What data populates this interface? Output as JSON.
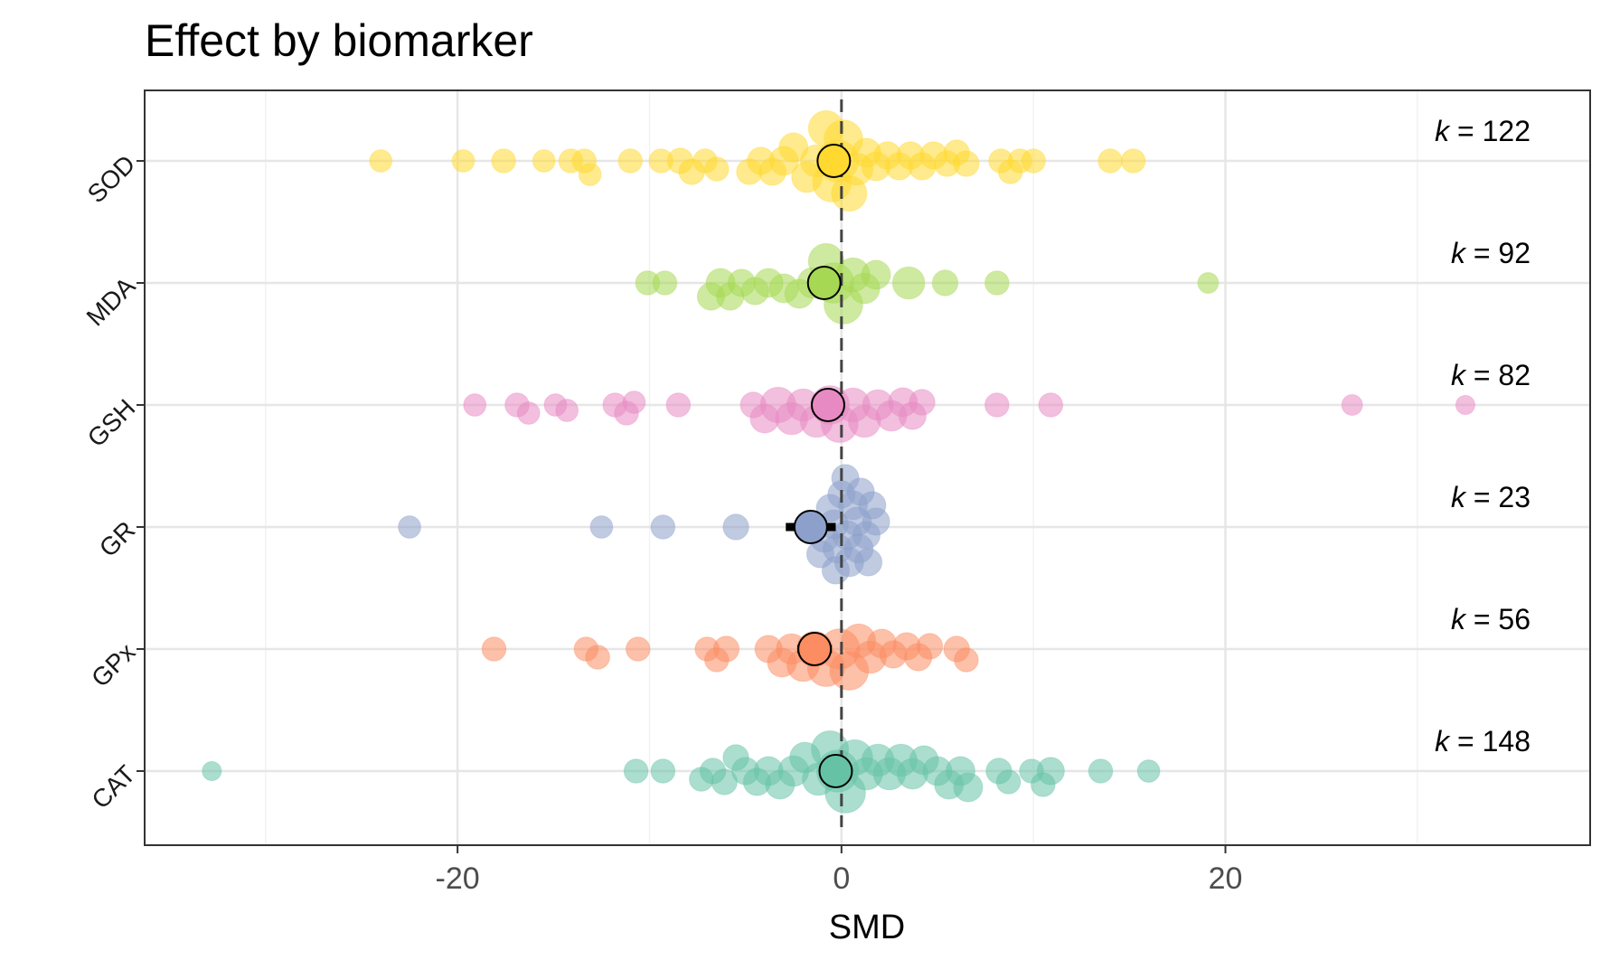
{
  "chart_data": {
    "type": "scatter",
    "title": "Effect by biomarker",
    "xlabel": "SMD",
    "ylabel": "",
    "xlim": [
      -36.3,
      39
    ],
    "x_ticks": [
      -20,
      0,
      20
    ],
    "x_tick_labels": [
      "-20",
      "0",
      "20"
    ],
    "reference_line_x": 0,
    "grid": true,
    "categories": [
      "SOD",
      "MDA",
      "GSH",
      "GR",
      "GPx",
      "CAT"
    ],
    "series": [
      {
        "name": "SOD",
        "color": "#FFD92F",
        "k_label": "k = 122",
        "summary": {
          "estimate": -0.4,
          "ci": [
            -1.0,
            0.2
          ]
        },
        "points": [
          {
            "x": -24.0,
            "y": 0,
            "w": 0.3
          },
          {
            "x": -19.7,
            "y": 0,
            "w": 0.3
          },
          {
            "x": -17.6,
            "y": 0,
            "w": 0.35
          },
          {
            "x": -15.5,
            "y": 0,
            "w": 0.3
          },
          {
            "x": -14.1,
            "y": 0,
            "w": 0.35
          },
          {
            "x": -13.4,
            "y": 0,
            "w": 0.35
          },
          {
            "x": -13.1,
            "y": 0,
            "w": 0.3
          },
          {
            "x": -11.0,
            "y": 0,
            "w": 0.35
          },
          {
            "x": -9.4,
            "y": 0,
            "w": 0.35
          },
          {
            "x": -8.4,
            "y": 0,
            "w": 0.4
          },
          {
            "x": -7.8,
            "y": 0,
            "w": 0.4
          },
          {
            "x": -7.1,
            "y": 0,
            "w": 0.35
          },
          {
            "x": -6.5,
            "y": 0,
            "w": 0.35
          },
          {
            "x": -4.8,
            "y": 0,
            "w": 0.4
          },
          {
            "x": -4.2,
            "y": 0,
            "w": 0.45
          },
          {
            "x": -3.6,
            "y": 0,
            "w": 0.45
          },
          {
            "x": -3.0,
            "y": 0,
            "w": 0.5
          },
          {
            "x": -2.5,
            "y": 0,
            "w": 0.5
          },
          {
            "x": -1.8,
            "y": 0,
            "w": 0.55
          },
          {
            "x": -1.3,
            "y": 0,
            "w": 0.6
          },
          {
            "x": -0.8,
            "y": 0,
            "w": 0.7
          },
          {
            "x": -0.5,
            "y": 0,
            "w": 0.8
          },
          {
            "x": -0.2,
            "y": 0,
            "w": 0.9
          },
          {
            "x": 0.1,
            "y": 0,
            "w": 0.8
          },
          {
            "x": 0.4,
            "y": 0,
            "w": 0.7
          },
          {
            "x": 0.8,
            "y": 0,
            "w": 0.6
          },
          {
            "x": 1.3,
            "y": 0,
            "w": 0.5
          },
          {
            "x": 1.8,
            "y": 0,
            "w": 0.5
          },
          {
            "x": 2.4,
            "y": 0,
            "w": 0.45
          },
          {
            "x": 3.0,
            "y": 0,
            "w": 0.45
          },
          {
            "x": 3.6,
            "y": 0,
            "w": 0.45
          },
          {
            "x": 4.2,
            "y": 0,
            "w": 0.45
          },
          {
            "x": 4.8,
            "y": 0,
            "w": 0.45
          },
          {
            "x": 5.5,
            "y": 0,
            "w": 0.4
          },
          {
            "x": 6.0,
            "y": 0,
            "w": 0.4
          },
          {
            "x": 6.5,
            "y": 0,
            "w": 0.4
          },
          {
            "x": 8.3,
            "y": 0,
            "w": 0.35
          },
          {
            "x": 8.8,
            "y": 0,
            "w": 0.35
          },
          {
            "x": 9.3,
            "y": 0,
            "w": 0.35
          },
          {
            "x": 10.0,
            "y": 0,
            "w": 0.35
          },
          {
            "x": 14.0,
            "y": 0,
            "w": 0.35
          },
          {
            "x": 15.2,
            "y": 0,
            "w": 0.35
          }
        ]
      },
      {
        "name": "MDA",
        "color": "#A6D854",
        "k_label": "k = 92",
        "summary": {
          "estimate": -0.9,
          "ci": [
            -1.5,
            -0.3
          ]
        },
        "points": [
          {
            "x": -10.1,
            "y": 0,
            "w": 0.35
          },
          {
            "x": -9.2,
            "y": 0,
            "w": 0.35
          },
          {
            "x": -6.8,
            "y": 0,
            "w": 0.45
          },
          {
            "x": -6.3,
            "y": 0,
            "w": 0.5
          },
          {
            "x": -5.8,
            "y": 0,
            "w": 0.45
          },
          {
            "x": -5.2,
            "y": 0,
            "w": 0.45
          },
          {
            "x": -4.5,
            "y": 0,
            "w": 0.45
          },
          {
            "x": -3.8,
            "y": 0,
            "w": 0.5
          },
          {
            "x": -3.0,
            "y": 0,
            "w": 0.5
          },
          {
            "x": -2.2,
            "y": 0,
            "w": 0.5
          },
          {
            "x": -1.5,
            "y": 0,
            "w": 0.55
          },
          {
            "x": -0.8,
            "y": 0,
            "w": 0.7
          },
          {
            "x": -0.4,
            "y": 0,
            "w": 0.85
          },
          {
            "x": 0.1,
            "y": 0,
            "w": 0.8
          },
          {
            "x": 0.6,
            "y": 0,
            "w": 0.65
          },
          {
            "x": 1.2,
            "y": 0,
            "w": 0.55
          },
          {
            "x": 1.8,
            "y": 0,
            "w": 0.5
          },
          {
            "x": 3.5,
            "y": 0,
            "w": 0.6
          },
          {
            "x": 5.4,
            "y": 0,
            "w": 0.4
          },
          {
            "x": 8.1,
            "y": 0,
            "w": 0.35
          },
          {
            "x": 19.1,
            "y": 0,
            "w": 0.25
          }
        ]
      },
      {
        "name": "GSH",
        "color": "#E78AC3",
        "k_label": "k = 82",
        "summary": {
          "estimate": -0.7,
          "ci": [
            -1.3,
            -0.1
          ]
        },
        "points": [
          {
            "x": -19.1,
            "y": 0,
            "w": 0.3
          },
          {
            "x": -16.9,
            "y": 0,
            "w": 0.35
          },
          {
            "x": -16.3,
            "y": 0,
            "w": 0.3
          },
          {
            "x": -14.9,
            "y": 0,
            "w": 0.3
          },
          {
            "x": -14.3,
            "y": 0,
            "w": 0.3
          },
          {
            "x": -11.8,
            "y": 0,
            "w": 0.35
          },
          {
            "x": -11.2,
            "y": 0,
            "w": 0.35
          },
          {
            "x": -10.8,
            "y": 0,
            "w": 0.3
          },
          {
            "x": -8.5,
            "y": 0,
            "w": 0.35
          },
          {
            "x": -4.6,
            "y": 0,
            "w": 0.4
          },
          {
            "x": -4.0,
            "y": 0,
            "w": 0.5
          },
          {
            "x": -3.3,
            "y": 0,
            "w": 0.7
          },
          {
            "x": -2.6,
            "y": 0,
            "w": 0.6
          },
          {
            "x": -2.0,
            "y": 0,
            "w": 0.6
          },
          {
            "x": -1.3,
            "y": 0,
            "w": 0.6
          },
          {
            "x": -0.6,
            "y": 0,
            "w": 0.8
          },
          {
            "x": -0.1,
            "y": 0,
            "w": 0.75
          },
          {
            "x": 0.6,
            "y": 0,
            "w": 0.65
          },
          {
            "x": 1.2,
            "y": 0,
            "w": 0.6
          },
          {
            "x": 1.9,
            "y": 0,
            "w": 0.55
          },
          {
            "x": 2.6,
            "y": 0,
            "w": 0.55
          },
          {
            "x": 3.2,
            "y": 0,
            "w": 0.5
          },
          {
            "x": 3.7,
            "y": 0,
            "w": 0.45
          },
          {
            "x": 4.2,
            "y": 0,
            "w": 0.4
          },
          {
            "x": 8.1,
            "y": 0,
            "w": 0.35
          },
          {
            "x": 10.9,
            "y": 0,
            "w": 0.35
          },
          {
            "x": 26.6,
            "y": 0,
            "w": 0.25
          },
          {
            "x": 32.5,
            "y": 0,
            "w": 0.2
          }
        ]
      },
      {
        "name": "GR",
        "color": "#8DA0CB",
        "k_label": "k = 23",
        "summary": {
          "estimate": -1.6,
          "ci": [
            -2.9,
            -0.3
          ]
        },
        "points": [
          {
            "x": -22.5,
            "y": 0,
            "w": 0.3
          },
          {
            "x": -12.5,
            "y": 0,
            "w": 0.3
          },
          {
            "x": -9.3,
            "y": 0,
            "w": 0.35
          },
          {
            "x": -5.5,
            "y": 0,
            "w": 0.4
          },
          {
            "x": -1.6,
            "y": 0,
            "w": 0.55
          },
          {
            "x": -0.9,
            "y": 0,
            "w": 0.5
          },
          {
            "x": -0.4,
            "y": 0,
            "w": 0.5
          },
          {
            "x": 0.3,
            "y": 0,
            "w": 0.5
          },
          {
            "x": 0.8,
            "y": 0,
            "w": 0.5
          },
          {
            "x": 1.3,
            "y": 0,
            "w": 0.45
          },
          {
            "x": 1.8,
            "y": 0,
            "w": 0.45
          },
          {
            "x": 0.6,
            "y": 0,
            "w": 0.5
          },
          {
            "x": -0.2,
            "y": 0,
            "w": 0.5
          },
          {
            "x": 1.0,
            "y": 0,
            "w": 0.45
          },
          {
            "x": 0.0,
            "y": 0,
            "w": 0.45
          },
          {
            "x": 1.6,
            "y": 0,
            "w": 0.45
          },
          {
            "x": -0.6,
            "y": 0,
            "w": 0.45
          },
          {
            "x": 0.9,
            "y": 0,
            "w": 0.5
          },
          {
            "x": 0.4,
            "y": 0,
            "w": 0.5
          },
          {
            "x": -1.1,
            "y": 0,
            "w": 0.45
          },
          {
            "x": 1.4,
            "y": 0,
            "w": 0.45
          },
          {
            "x": 0.2,
            "y": 0,
            "w": 0.45
          },
          {
            "x": -0.3,
            "y": 0,
            "w": 0.45
          }
        ]
      },
      {
        "name": "GPx",
        "color": "#FC8D62",
        "k_label": "k = 56",
        "summary": {
          "estimate": -1.4,
          "ci": [
            -2.3,
            -0.5
          ]
        },
        "points": [
          {
            "x": -18.1,
            "y": 0,
            "w": 0.35
          },
          {
            "x": -13.3,
            "y": 0,
            "w": 0.35
          },
          {
            "x": -12.7,
            "y": 0,
            "w": 0.35
          },
          {
            "x": -10.6,
            "y": 0,
            "w": 0.35
          },
          {
            "x": -7.0,
            "y": 0,
            "w": 0.35
          },
          {
            "x": -6.5,
            "y": 0,
            "w": 0.35
          },
          {
            "x": -6.0,
            "y": 0,
            "w": 0.4
          },
          {
            "x": -3.8,
            "y": 0,
            "w": 0.45
          },
          {
            "x": -3.1,
            "y": 0,
            "w": 0.5
          },
          {
            "x": -2.6,
            "y": 0,
            "w": 0.55
          },
          {
            "x": -2.0,
            "y": 0,
            "w": 0.6
          },
          {
            "x": -1.4,
            "y": 0,
            "w": 0.7
          },
          {
            "x": -0.8,
            "y": 0,
            "w": 0.75
          },
          {
            "x": -0.1,
            "y": 0,
            "w": 0.85
          },
          {
            "x": 0.4,
            "y": 0,
            "w": 0.8
          },
          {
            "x": 0.9,
            "y": 0,
            "w": 0.65
          },
          {
            "x": 1.5,
            "y": 0,
            "w": 0.6
          },
          {
            "x": 2.1,
            "y": 0,
            "w": 0.5
          },
          {
            "x": 2.7,
            "y": 0,
            "w": 0.45
          },
          {
            "x": 3.4,
            "y": 0,
            "w": 0.45
          },
          {
            "x": 4.0,
            "y": 0,
            "w": 0.45
          },
          {
            "x": 4.6,
            "y": 0,
            "w": 0.4
          },
          {
            "x": 6.0,
            "y": 0,
            "w": 0.4
          },
          {
            "x": 6.5,
            "y": 0,
            "w": 0.35
          }
        ]
      },
      {
        "name": "CAT",
        "color": "#66C2A5",
        "k_label": "k = 148",
        "summary": {
          "estimate": -0.3,
          "ci": [
            -0.8,
            0.2
          ]
        },
        "points": [
          {
            "x": -32.8,
            "y": 0,
            "w": 0.2
          },
          {
            "x": -10.7,
            "y": 0,
            "w": 0.35
          },
          {
            "x": -9.3,
            "y": 0,
            "w": 0.35
          },
          {
            "x": -7.3,
            "y": 0,
            "w": 0.35
          },
          {
            "x": -6.7,
            "y": 0,
            "w": 0.4
          },
          {
            "x": -6.1,
            "y": 0,
            "w": 0.4
          },
          {
            "x": -5.5,
            "y": 0,
            "w": 0.4
          },
          {
            "x": -5.0,
            "y": 0,
            "w": 0.45
          },
          {
            "x": -4.4,
            "y": 0,
            "w": 0.45
          },
          {
            "x": -3.8,
            "y": 0,
            "w": 0.5
          },
          {
            "x": -3.2,
            "y": 0,
            "w": 0.5
          },
          {
            "x": -2.5,
            "y": 0,
            "w": 0.55
          },
          {
            "x": -1.9,
            "y": 0,
            "w": 0.55
          },
          {
            "x": -1.2,
            "y": 0,
            "w": 0.6
          },
          {
            "x": -0.6,
            "y": 0,
            "w": 0.75
          },
          {
            "x": -0.2,
            "y": 0,
            "w": 0.9
          },
          {
            "x": 0.2,
            "y": 0,
            "w": 0.85
          },
          {
            "x": 0.7,
            "y": 0,
            "w": 0.7
          },
          {
            "x": 1.3,
            "y": 0,
            "w": 0.6
          },
          {
            "x": 1.9,
            "y": 0,
            "w": 0.6
          },
          {
            "x": 2.5,
            "y": 0,
            "w": 0.6
          },
          {
            "x": 3.1,
            "y": 0,
            "w": 0.6
          },
          {
            "x": 3.7,
            "y": 0,
            "w": 0.55
          },
          {
            "x": 4.3,
            "y": 0,
            "w": 0.5
          },
          {
            "x": 5.0,
            "y": 0,
            "w": 0.5
          },
          {
            "x": 5.6,
            "y": 0,
            "w": 0.5
          },
          {
            "x": 6.2,
            "y": 0,
            "w": 0.5
          },
          {
            "x": 6.6,
            "y": 0,
            "w": 0.5
          },
          {
            "x": 8.2,
            "y": 0,
            "w": 0.4
          },
          {
            "x": 8.7,
            "y": 0,
            "w": 0.35
          },
          {
            "x": 9.9,
            "y": 0,
            "w": 0.35
          },
          {
            "x": 10.5,
            "y": 0,
            "w": 0.35
          },
          {
            "x": 10.9,
            "y": 0,
            "w": 0.45
          },
          {
            "x": 13.5,
            "y": 0,
            "w": 0.35
          },
          {
            "x": 16.0,
            "y": 0,
            "w": 0.3
          }
        ]
      }
    ]
  }
}
